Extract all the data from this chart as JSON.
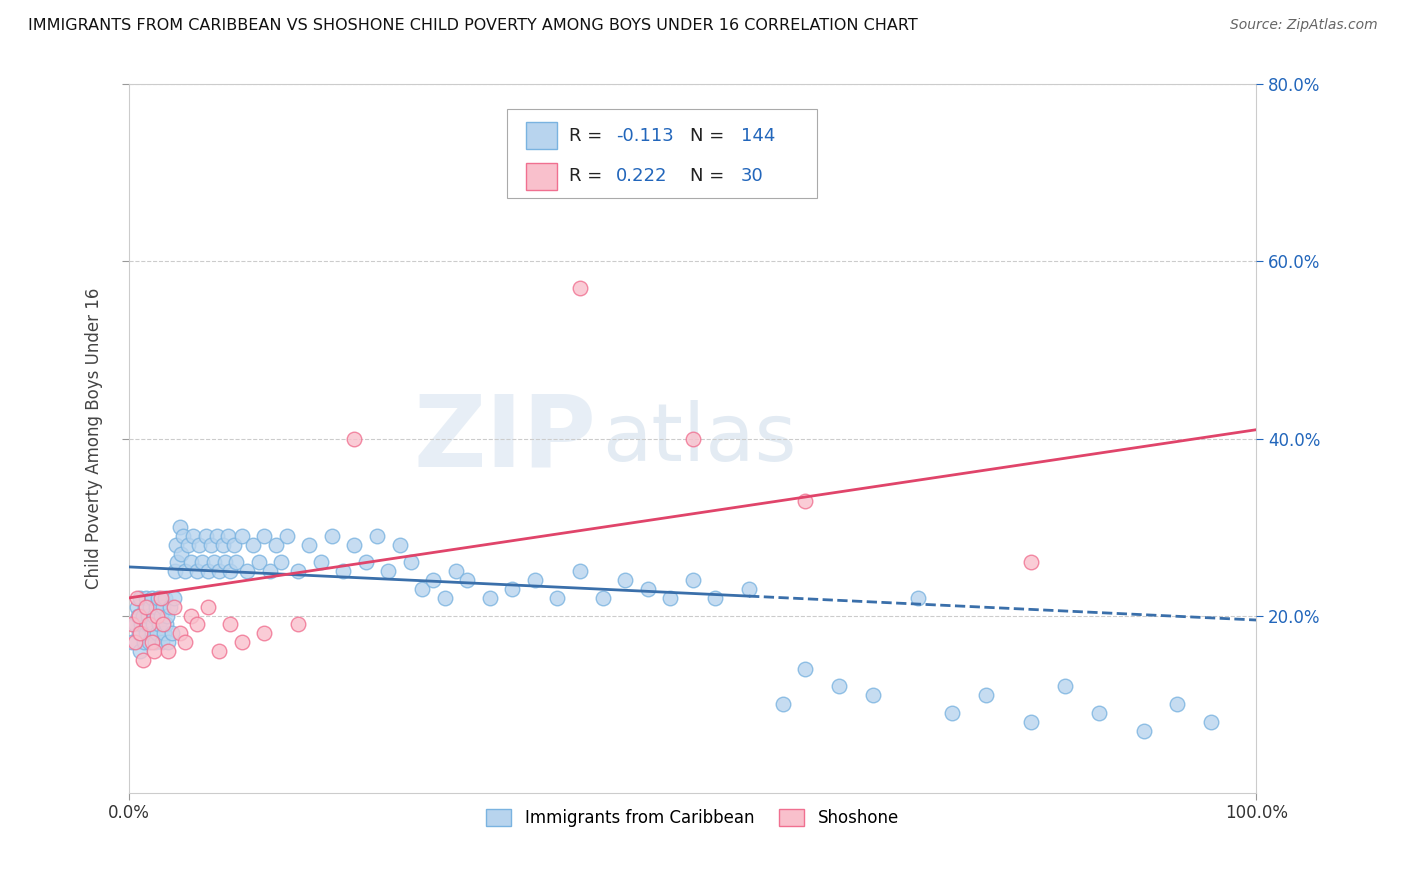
{
  "title": "IMMIGRANTS FROM CARIBBEAN VS SHOSHONE CHILD POVERTY AMONG BOYS UNDER 16 CORRELATION CHART",
  "source": "Source: ZipAtlas.com",
  "ylabel": "Child Poverty Among Boys Under 16",
  "background_color": "#ffffff",
  "blue_color": "#7ab3e0",
  "blue_fill": "#b8d4ee",
  "pink_color": "#f07090",
  "pink_fill": "#f9c0cc",
  "blue_line_color": "#3a6faa",
  "pink_line_color": "#e0446a",
  "xlim": [
    0.0,
    1.0
  ],
  "ylim": [
    0.0,
    0.8
  ],
  "grid_color": "#cccccc",
  "legend_bottom_labels": [
    "Immigrants from Caribbean",
    "Shoshone"
  ],
  "blue_line_y_start": 0.255,
  "blue_line_y_end": 0.195,
  "blue_line_solid_end_x": 0.55,
  "pink_line_y_start": 0.22,
  "pink_line_y_end": 0.41,
  "blue_scatter_x": [
    0.003,
    0.005,
    0.007,
    0.008,
    0.009,
    0.01,
    0.01,
    0.011,
    0.012,
    0.013,
    0.014,
    0.015,
    0.015,
    0.016,
    0.017,
    0.018,
    0.019,
    0.02,
    0.02,
    0.021,
    0.022,
    0.023,
    0.024,
    0.025,
    0.026,
    0.027,
    0.028,
    0.029,
    0.03,
    0.031,
    0.032,
    0.033,
    0.034,
    0.035,
    0.036,
    0.038,
    0.04,
    0.041,
    0.042,
    0.043,
    0.045,
    0.046,
    0.048,
    0.05,
    0.052,
    0.055,
    0.057,
    0.06,
    0.062,
    0.065,
    0.068,
    0.07,
    0.073,
    0.075,
    0.078,
    0.08,
    0.083,
    0.085,
    0.088,
    0.09,
    0.093,
    0.095,
    0.1,
    0.105,
    0.11,
    0.115,
    0.12,
    0.125,
    0.13,
    0.135,
    0.14,
    0.15,
    0.16,
    0.17,
    0.18,
    0.19,
    0.2,
    0.21,
    0.22,
    0.23,
    0.24,
    0.25,
    0.26,
    0.27,
    0.28,
    0.29,
    0.3,
    0.32,
    0.34,
    0.36,
    0.38,
    0.4,
    0.42,
    0.44,
    0.46,
    0.48,
    0.5,
    0.52,
    0.55,
    0.58,
    0.6,
    0.63,
    0.66,
    0.7,
    0.73,
    0.76,
    0.8,
    0.83,
    0.86,
    0.9,
    0.93,
    0.96
  ],
  "blue_scatter_y": [
    0.17,
    0.19,
    0.21,
    0.2,
    0.18,
    0.22,
    0.16,
    0.19,
    0.2,
    0.17,
    0.21,
    0.18,
    0.22,
    0.19,
    0.2,
    0.17,
    0.21,
    0.18,
    0.22,
    0.19,
    0.2,
    0.17,
    0.21,
    0.18,
    0.22,
    0.19,
    0.2,
    0.17,
    0.21,
    0.18,
    0.22,
    0.19,
    0.2,
    0.17,
    0.21,
    0.18,
    0.22,
    0.25,
    0.28,
    0.26,
    0.3,
    0.27,
    0.29,
    0.25,
    0.28,
    0.26,
    0.29,
    0.25,
    0.28,
    0.26,
    0.29,
    0.25,
    0.28,
    0.26,
    0.29,
    0.25,
    0.28,
    0.26,
    0.29,
    0.25,
    0.28,
    0.26,
    0.29,
    0.25,
    0.28,
    0.26,
    0.29,
    0.25,
    0.28,
    0.26,
    0.29,
    0.25,
    0.28,
    0.26,
    0.29,
    0.25,
    0.28,
    0.26,
    0.29,
    0.25,
    0.28,
    0.26,
    0.23,
    0.24,
    0.22,
    0.25,
    0.24,
    0.22,
    0.23,
    0.24,
    0.22,
    0.25,
    0.22,
    0.24,
    0.23,
    0.22,
    0.24,
    0.22,
    0.23,
    0.1,
    0.14,
    0.12,
    0.11,
    0.22,
    0.09,
    0.11,
    0.08,
    0.12,
    0.09,
    0.07,
    0.1,
    0.08
  ],
  "pink_scatter_x": [
    0.003,
    0.005,
    0.007,
    0.009,
    0.01,
    0.012,
    0.015,
    0.018,
    0.02,
    0.022,
    0.025,
    0.028,
    0.03,
    0.035,
    0.04,
    0.045,
    0.05,
    0.055,
    0.06,
    0.07,
    0.08,
    0.09,
    0.1,
    0.12,
    0.15,
    0.2,
    0.4,
    0.5,
    0.6,
    0.8
  ],
  "pink_scatter_y": [
    0.19,
    0.17,
    0.22,
    0.2,
    0.18,
    0.15,
    0.21,
    0.19,
    0.17,
    0.16,
    0.2,
    0.22,
    0.19,
    0.16,
    0.21,
    0.18,
    0.17,
    0.2,
    0.19,
    0.21,
    0.16,
    0.19,
    0.17,
    0.18,
    0.19,
    0.4,
    0.57,
    0.4,
    0.33,
    0.26
  ]
}
